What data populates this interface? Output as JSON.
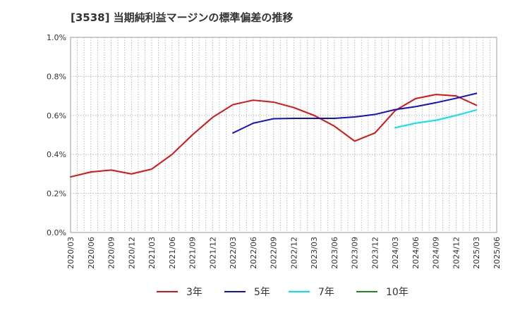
{
  "chart_data": {
    "type": "line",
    "title": "[3538]  当期純利益マージンの標準偏差の推移",
    "xlabel": "",
    "ylabel": "",
    "x": [
      "2020/03",
      "2020/06",
      "2020/09",
      "2020/12",
      "2021/03",
      "2021/06",
      "2021/09",
      "2021/12",
      "2022/03",
      "2022/06",
      "2022/09",
      "2022/12",
      "2023/03",
      "2023/06",
      "2023/09",
      "2023/12",
      "2024/03",
      "2024/06",
      "2024/09",
      "2024/12",
      "2025/03",
      "2025/06"
    ],
    "y_ticks": [
      "0.0%",
      "0.2%",
      "0.4%",
      "0.6%",
      "0.8%",
      "1.0%"
    ],
    "ylim": [
      0,
      1.0
    ],
    "grid": true,
    "legend_position": "bottom",
    "series": [
      {
        "name": "3年",
        "color": "#dd1111",
        "values": [
          0.285,
          0.31,
          0.32,
          0.3,
          0.325,
          0.4,
          0.5,
          0.59,
          0.655,
          0.678,
          0.668,
          0.64,
          0.6,
          0.545,
          0.468,
          0.51,
          0.625,
          0.686,
          0.707,
          0.7,
          0.652,
          null
        ]
      },
      {
        "name": "5年",
        "color": "#1111cc",
        "values": [
          null,
          null,
          null,
          null,
          null,
          null,
          null,
          null,
          0.51,
          0.56,
          0.583,
          0.585,
          0.585,
          0.585,
          0.592,
          0.605,
          0.63,
          0.645,
          0.665,
          0.688,
          0.713,
          null
        ]
      },
      {
        "name": "7年",
        "color": "#00e5ee",
        "values": [
          null,
          null,
          null,
          null,
          null,
          null,
          null,
          null,
          null,
          null,
          null,
          null,
          null,
          null,
          null,
          null,
          0.537,
          0.56,
          0.575,
          0.6,
          0.628,
          null
        ]
      },
      {
        "name": "10年",
        "color": "#228822",
        "values": [
          null,
          null,
          null,
          null,
          null,
          null,
          null,
          null,
          null,
          null,
          null,
          null,
          null,
          null,
          null,
          null,
          null,
          null,
          null,
          null,
          null,
          null
        ]
      }
    ]
  }
}
